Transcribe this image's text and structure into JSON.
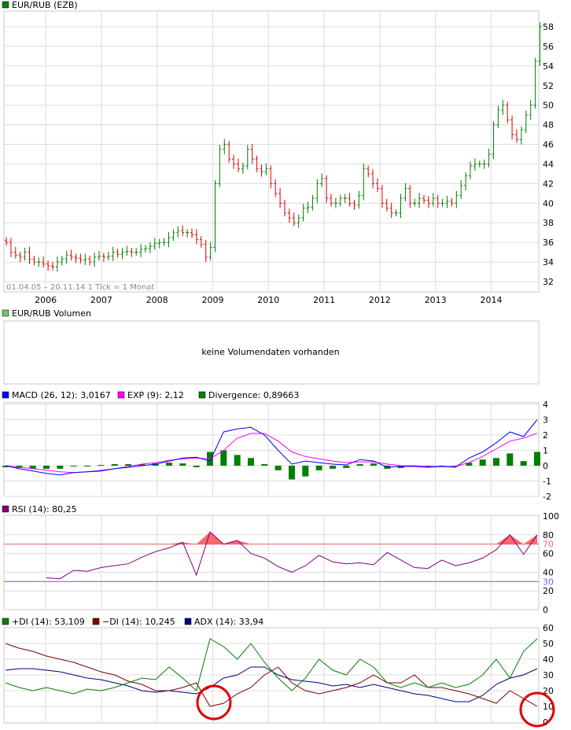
{
  "chart_data": [
    {
      "type": "ohlc",
      "legend": "EUR/RUB (EZB)",
      "legend_color": "#008000",
      "date_range_note": "01.04.05 – 20.11.14   1 Tick = 1 Monat",
      "x_tick_labels": [
        "2006",
        "2007",
        "2008",
        "2009",
        "2010",
        "2011",
        "2012",
        "2013",
        "2014"
      ],
      "y_tick_labels": [
        "32",
        "34",
        "36",
        "38",
        "40",
        "42",
        "44",
        "46",
        "48",
        "50",
        "52",
        "54",
        "56",
        "58"
      ],
      "ylim": [
        31,
        59.5
      ],
      "grid": true,
      "start": "2005-04",
      "end": "2014-11",
      "up_color": "#008000",
      "down_color": "#e00000",
      "monthly_close": [
        36,
        35,
        34.7,
        34.5,
        35,
        34.3,
        34,
        34,
        33.8,
        33.6,
        33.5,
        34,
        34.3,
        34.7,
        34.5,
        34.4,
        34.2,
        34.3,
        34,
        34.5,
        34.6,
        34.5,
        34.6,
        35,
        34.8,
        35,
        35.1,
        35,
        35,
        35.3,
        35.4,
        35.6,
        35.9,
        36,
        36,
        36.5,
        37,
        37.2,
        37,
        37,
        36.8,
        36.3,
        35.8,
        34.5,
        35.5,
        42,
        45.5,
        46,
        44.5,
        44,
        43.5,
        43.8,
        45.5,
        44.5,
        43.5,
        43.2,
        43.5,
        42,
        41,
        40,
        39,
        38.5,
        38,
        38.5,
        39.5,
        39.6,
        40.5,
        42,
        42.5,
        40.5,
        40,
        40,
        40.5,
        40.5,
        40,
        39.8,
        40.8,
        43.5,
        43,
        42,
        41.5,
        40,
        39.5,
        39,
        39,
        40.5,
        41.5,
        40,
        40,
        40.5,
        40.3,
        40,
        40.5,
        40,
        40,
        40.2,
        40,
        40.8,
        41.8,
        42.8,
        43.8,
        44,
        44,
        44,
        45,
        48,
        49.5,
        50,
        48.5,
        47,
        46.5,
        47.5,
        49,
        50,
        54.5,
        58
      ]
    },
    {
      "type": "bar",
      "legend": "EUR/RUB Volumen",
      "legend_color": "#66cc66",
      "message": "keine Volumendaten vorhanden"
    },
    {
      "type": "line",
      "y_tick_labels": [
        "-2",
        "-1",
        "0",
        "1",
        "2",
        "3",
        "4"
      ],
      "ylim": [
        -2,
        4
      ],
      "series": [
        {
          "name": "MACD (26, 12): 3,0167",
          "color": "#0000ff",
          "values": [
            0,
            -0.2,
            -0.35,
            -0.5,
            -0.6,
            -0.45,
            -0.4,
            -0.35,
            -0.2,
            -0.1,
            0,
            0.1,
            0.3,
            0.5,
            0.55,
            0.3,
            2.2,
            2.4,
            2.5,
            2.0,
            1.0,
            0.1,
            0.3,
            0.2,
            0.1,
            0.05,
            0.4,
            0.3,
            -0.1,
            -0.05,
            -0.05,
            -0.1,
            -0.05,
            -0.1,
            0.5,
            0.9,
            1.5,
            2.2,
            1.9,
            3.0
          ]
        },
        {
          "name": "EXP (9): 2,12",
          "color": "#ff00ff",
          "values": [
            0,
            -0.1,
            -0.2,
            -0.3,
            -0.4,
            -0.45,
            -0.4,
            -0.3,
            -0.2,
            -0.05,
            0.1,
            0.2,
            0.35,
            0.45,
            0.5,
            0.45,
            1.0,
            1.8,
            2.1,
            2.1,
            1.6,
            0.9,
            0.6,
            0.45,
            0.3,
            0.2,
            0.25,
            0.25,
            0.1,
            0,
            0,
            -0.05,
            -0.05,
            -0.05,
            0.2,
            0.6,
            1.1,
            1.6,
            1.8,
            2.12
          ]
        },
        {
          "name": "Divergence: 0,89663",
          "color": "#008000",
          "type": "bar",
          "values": [
            -0.1,
            -0.15,
            -0.2,
            -0.2,
            -0.2,
            -0.05,
            0,
            0.05,
            0.1,
            0.1,
            0.1,
            0.15,
            0.2,
            0.15,
            -0.1,
            0.9,
            1.0,
            0.7,
            0.5,
            0.1,
            -0.3,
            -0.9,
            -0.7,
            -0.3,
            -0.2,
            -0.15,
            0.1,
            0.15,
            -0.2,
            -0.15,
            -0.05,
            -0.05,
            0,
            0,
            0.2,
            0.4,
            0.5,
            0.8,
            0.3,
            0.9
          ]
        }
      ]
    },
    {
      "type": "line",
      "y_tick_labels": [
        "0",
        "20",
        "30",
        "40",
        "60",
        "70",
        "80",
        "100"
      ],
      "ylim": [
        0,
        100
      ],
      "overbought": 70,
      "oversold": 30,
      "overbought_color": "#ff6666",
      "oversold_color": "#6666ff",
      "series": [
        {
          "name": "RSI (14): 80,25",
          "color": "#800080",
          "values": [
            null,
            null,
            null,
            34,
            33,
            42,
            41,
            45,
            47,
            49,
            56,
            62,
            66,
            72,
            37,
            83,
            70,
            74,
            60,
            55,
            46,
            40,
            47,
            58,
            51,
            49,
            50,
            48,
            61,
            53,
            45,
            44,
            53,
            47,
            50,
            55,
            64,
            80,
            59,
            80
          ]
        }
      ]
    },
    {
      "type": "line",
      "y_tick_labels": [
        "0",
        "10",
        "20",
        "30",
        "40",
        "50",
        "60"
      ],
      "ylim": [
        0,
        60
      ],
      "highlight_color": "#e00000",
      "series": [
        {
          "name": "+DI (14): 53,109",
          "color": "#008000",
          "values": [
            25,
            22,
            20,
            22,
            20,
            18,
            21,
            20,
            22,
            25,
            28,
            27,
            35,
            28,
            20,
            53,
            48,
            40,
            50,
            38,
            28,
            20,
            28,
            40,
            33,
            30,
            40,
            35,
            25,
            22,
            25,
            22,
            25,
            22,
            24,
            30,
            40,
            28,
            45,
            53
          ]
        },
        {
          "name": "−DI (14): 10,245",
          "color": "#800000",
          "values": [
            50,
            47,
            45,
            42,
            40,
            38,
            35,
            32,
            30,
            26,
            24,
            20,
            20,
            22,
            25,
            10,
            12,
            18,
            22,
            30,
            35,
            25,
            20,
            18,
            20,
            22,
            25,
            30,
            25,
            25,
            30,
            22,
            22,
            20,
            18,
            15,
            12,
            20,
            15,
            10
          ]
        },
        {
          "name": "ADX (14): 33,94",
          "color": "#000080",
          "values": [
            33,
            34,
            34,
            33,
            32,
            30,
            28,
            27,
            25,
            23,
            20,
            19,
            20,
            19,
            18,
            22,
            28,
            30,
            35,
            35,
            30,
            27,
            26,
            25,
            23,
            24,
            22,
            24,
            22,
            20,
            18,
            17,
            15,
            13,
            13,
            17,
            24,
            28,
            30,
            34
          ]
        }
      ]
    }
  ]
}
